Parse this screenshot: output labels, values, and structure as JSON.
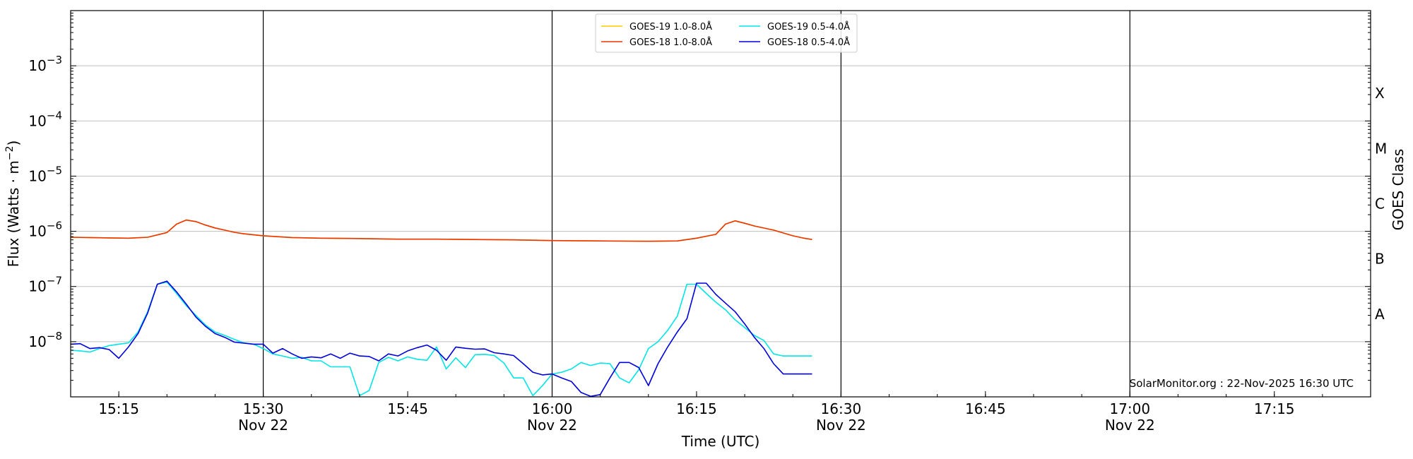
{
  "chart_data": {
    "type": "line",
    "xlabel": "Time (UTC)",
    "ylabel": "Flux (Watts · m⁻²)",
    "y2label": "GOES Class",
    "yscale": "log",
    "xlim": [
      "15:10",
      "17:25"
    ],
    "ylim": [
      1e-09,
      0.01
    ],
    "grid": "horizontal at decades",
    "vertical_markers": [
      "15:30",
      "16:00",
      "16:30",
      "17:00"
    ],
    "legend_position": "top-center",
    "credit": "SolarMonitor.org : 22-Nov-2025 16:30 UTC",
    "x_ticks": [
      {
        "t": "15:15",
        "label": "15:15",
        "sublabel": ""
      },
      {
        "t": "15:30",
        "label": "15:30",
        "sublabel": "Nov 22"
      },
      {
        "t": "15:45",
        "label": "15:45",
        "sublabel": ""
      },
      {
        "t": "16:00",
        "label": "16:00",
        "sublabel": "Nov 22"
      },
      {
        "t": "16:15",
        "label": "16:15",
        "sublabel": ""
      },
      {
        "t": "16:30",
        "label": "16:30",
        "sublabel": "Nov 22"
      },
      {
        "t": "16:45",
        "label": "16:45",
        "sublabel": ""
      },
      {
        "t": "17:00",
        "label": "17:00",
        "sublabel": "Nov 22"
      },
      {
        "t": "17:15",
        "label": "17:15",
        "sublabel": ""
      }
    ],
    "y_ticks": [
      {
        "value": 0.001,
        "base": "10",
        "exp": "−3"
      },
      {
        "value": 0.0001,
        "base": "10",
        "exp": "−4"
      },
      {
        "value": 1e-05,
        "base": "10",
        "exp": "−5"
      },
      {
        "value": 1e-06,
        "base": "10",
        "exp": "−6"
      },
      {
        "value": 1e-07,
        "base": "10",
        "exp": "−7"
      },
      {
        "value": 1e-08,
        "base": "10",
        "exp": "−8"
      }
    ],
    "goes_classes": [
      {
        "label": "X",
        "value": 0.000316
      },
      {
        "label": "M",
        "value": 3.16e-05
      },
      {
        "label": "C",
        "value": 3.16e-06
      },
      {
        "label": "B",
        "value": 3.16e-07
      },
      {
        "label": "A",
        "value": 3.16e-08
      }
    ],
    "series": [
      {
        "name": "GOES-19 1.0-8.0Å",
        "color": "#ffcc00",
        "t": [
          "15:10",
          "15:12",
          "15:14",
          "15:16",
          "15:18",
          "15:20",
          "15:21",
          "15:22",
          "15:23",
          "15:24",
          "15:25",
          "15:26",
          "15:27",
          "15:28",
          "15:30",
          "15:33",
          "15:36",
          "15:40",
          "15:44",
          "15:48",
          "15:52",
          "15:56",
          "16:00",
          "16:05",
          "16:10",
          "16:13",
          "16:15",
          "16:17",
          "16:18",
          "16:19",
          "16:20",
          "16:21",
          "16:23",
          "16:25",
          "16:26",
          "16:27"
        ],
        "values": [
          7.8e-07,
          7.7e-07,
          7.6e-07,
          7.5e-07,
          7.8e-07,
          9.5e-07,
          1.35e-06,
          1.6e-06,
          1.5e-06,
          1.3e-06,
          1.15e-06,
          1.05e-06,
          9.6e-07,
          9e-07,
          8.3e-07,
          7.7e-07,
          7.5e-07,
          7.4e-07,
          7.2e-07,
          7.2e-07,
          7.1e-07,
          7e-07,
          6.8e-07,
          6.7e-07,
          6.6e-07,
          6.7e-07,
          7.5e-07,
          8.8e-07,
          1.35e-06,
          1.55e-06,
          1.4e-06,
          1.25e-06,
          1.05e-06,
          8.3e-07,
          7.6e-07,
          7.1e-07
        ]
      },
      {
        "name": "GOES-18 1.0-8.0Å",
        "color": "#ee3300",
        "t": [
          "15:10",
          "15:12",
          "15:14",
          "15:16",
          "15:18",
          "15:20",
          "15:21",
          "15:22",
          "15:23",
          "15:24",
          "15:25",
          "15:26",
          "15:27",
          "15:28",
          "15:30",
          "15:33",
          "15:36",
          "15:40",
          "15:44",
          "15:48",
          "15:52",
          "15:56",
          "16:00",
          "16:05",
          "16:10",
          "16:13",
          "16:15",
          "16:17",
          "16:18",
          "16:19",
          "16:20",
          "16:21",
          "16:23",
          "16:25",
          "16:26",
          "16:27"
        ],
        "values": [
          7.8e-07,
          7.7e-07,
          7.6e-07,
          7.5e-07,
          7.8e-07,
          9.5e-07,
          1.35e-06,
          1.6e-06,
          1.5e-06,
          1.3e-06,
          1.15e-06,
          1.05e-06,
          9.6e-07,
          9e-07,
          8.3e-07,
          7.7e-07,
          7.5e-07,
          7.4e-07,
          7.2e-07,
          7.2e-07,
          7.1e-07,
          7e-07,
          6.8e-07,
          6.7e-07,
          6.6e-07,
          6.7e-07,
          7.5e-07,
          8.8e-07,
          1.35e-06,
          1.55e-06,
          1.4e-06,
          1.25e-06,
          1.05e-06,
          8.3e-07,
          7.6e-07,
          7.1e-07
        ]
      },
      {
        "name": "GOES-19 0.5-4.0Å",
        "color": "#00e5e5",
        "t": [
          "15:10",
          "15:11",
          "15:12",
          "15:13",
          "15:14",
          "15:15",
          "15:16",
          "15:17",
          "15:18",
          "15:19",
          "15:20",
          "15:21",
          "15:22",
          "15:23",
          "15:24",
          "15:25",
          "15:26",
          "15:27",
          "15:28",
          "15:29",
          "15:30",
          "15:31",
          "15:32",
          "15:33",
          "15:34",
          "15:35",
          "15:36",
          "15:37",
          "15:38",
          "15:39",
          "15:40",
          "15:41",
          "15:42",
          "15:43",
          "15:44",
          "15:45",
          "15:46",
          "15:47",
          "15:48",
          "15:49",
          "15:50",
          "15:51",
          "15:52",
          "15:53",
          "15:54",
          "15:55",
          "15:56",
          "15:57",
          "15:58",
          "15:59",
          "16:00",
          "16:01",
          "16:02",
          "16:03",
          "16:04",
          "16:05",
          "16:06",
          "16:07",
          "16:08",
          "16:09",
          "16:10",
          "16:11",
          "16:12",
          "16:13",
          "16:14",
          "16:15",
          "16:16",
          "16:17",
          "16:18",
          "16:19",
          "16:20",
          "16:21",
          "16:22",
          "16:23",
          "16:24",
          "16:25",
          "16:26",
          "16:27"
        ],
        "values": [
          7e-09,
          6.8e-09,
          6.5e-09,
          7.5e-09,
          8.5e-09,
          9e-09,
          9.5e-09,
          1.5e-08,
          3.5e-08,
          1.1e-07,
          1.2e-07,
          7.5e-08,
          4.5e-08,
          3e-08,
          2e-08,
          1.5e-08,
          1.3e-08,
          1.1e-08,
          9.5e-09,
          9e-09,
          7.5e-09,
          6e-09,
          5.5e-09,
          5e-09,
          5.2e-09,
          4.5e-09,
          4.5e-09,
          3.5e-09,
          3.5e-09,
          3.5e-09,
          1.05e-09,
          1.3e-09,
          4.2e-09,
          5.2e-09,
          4.5e-09,
          5.3e-09,
          4.8e-09,
          4.6e-09,
          8e-09,
          3.2e-09,
          5.1e-09,
          3.4e-09,
          5.8e-09,
          5.9e-09,
          5.6e-09,
          4.1e-09,
          2.2e-09,
          2.2e-09,
          1.05e-09,
          1.6e-09,
          2.6e-09,
          2.8e-09,
          3.2e-09,
          4.2e-09,
          3.7e-09,
          4.1e-09,
          4e-09,
          2.2e-09,
          1.8e-09,
          3.1e-09,
          7.5e-09,
          1e-08,
          1.6e-08,
          2.9e-08,
          1.1e-07,
          1.1e-07,
          7.5e-08,
          5.2e-08,
          3.8e-08,
          2.5e-08,
          1.8e-08,
          1.3e-08,
          1.05e-08,
          6e-09,
          5.5e-09,
          5.5e-09,
          5.5e-09,
          5.5e-09
        ]
      },
      {
        "name": "GOES-18 0.5-4.0Å",
        "color": "#0000dd",
        "t": [
          "15:10",
          "15:11",
          "15:12",
          "15:13",
          "15:14",
          "15:15",
          "15:16",
          "15:17",
          "15:18",
          "15:19",
          "15:20",
          "15:21",
          "15:22",
          "15:23",
          "15:24",
          "15:25",
          "15:26",
          "15:27",
          "15:28",
          "15:29",
          "15:30",
          "15:31",
          "15:32",
          "15:33",
          "15:34",
          "15:35",
          "15:36",
          "15:37",
          "15:38",
          "15:39",
          "15:40",
          "15:41",
          "15:42",
          "15:43",
          "15:44",
          "15:45",
          "15:46",
          "15:47",
          "15:48",
          "15:49",
          "15:50",
          "15:51",
          "15:52",
          "15:53",
          "15:54",
          "15:55",
          "15:56",
          "15:57",
          "15:58",
          "15:59",
          "16:00",
          "16:01",
          "16:02",
          "16:03",
          "16:04",
          "16:05",
          "16:06",
          "16:07",
          "16:08",
          "16:09",
          "16:10",
          "16:11",
          "16:12",
          "16:13",
          "16:14",
          "16:15",
          "16:16",
          "16:17",
          "16:18",
          "16:19",
          "16:20",
          "16:21",
          "16:22",
          "16:23",
          "16:24",
          "16:25",
          "16:26",
          "16:27"
        ],
        "values": [
          9e-09,
          9.2e-09,
          7.5e-09,
          7.8e-09,
          7.2e-09,
          5e-09,
          8e-09,
          1.4e-08,
          3.3e-08,
          1.1e-07,
          1.25e-07,
          8e-08,
          4.8e-08,
          2.8e-08,
          1.9e-08,
          1.4e-08,
          1.2e-08,
          9.8e-09,
          9.4e-09,
          9e-09,
          9e-09,
          6.2e-09,
          7.5e-09,
          6e-09,
          5e-09,
          5.3e-09,
          5.1e-09,
          6e-09,
          5e-09,
          6.2e-09,
          5.5e-09,
          5.4e-09,
          4.5e-09,
          6e-09,
          5.5e-09,
          6.8e-09,
          7.8e-09,
          8.7e-09,
          7e-09,
          4.6e-09,
          8e-09,
          7.6e-09,
          7.3e-09,
          7.4e-09,
          6.3e-09,
          6e-09,
          5.6e-09,
          4e-09,
          2.8e-09,
          2.5e-09,
          2.6e-09,
          2.2e-09,
          1.9e-09,
          1.2e-09,
          1.02e-09,
          1.1e-09,
          2.2e-09,
          4.2e-09,
          4.2e-09,
          3.4e-09,
          1.6e-09,
          4e-09,
          8e-09,
          1.5e-08,
          2.6e-08,
          1.15e-07,
          1.15e-07,
          7.2e-08,
          5e-08,
          3.5e-08,
          2.1e-08,
          1.2e-08,
          7.5e-09,
          4e-09,
          2.6e-09,
          2.6e-09,
          2.6e-09,
          2.6e-09
        ]
      }
    ]
  }
}
